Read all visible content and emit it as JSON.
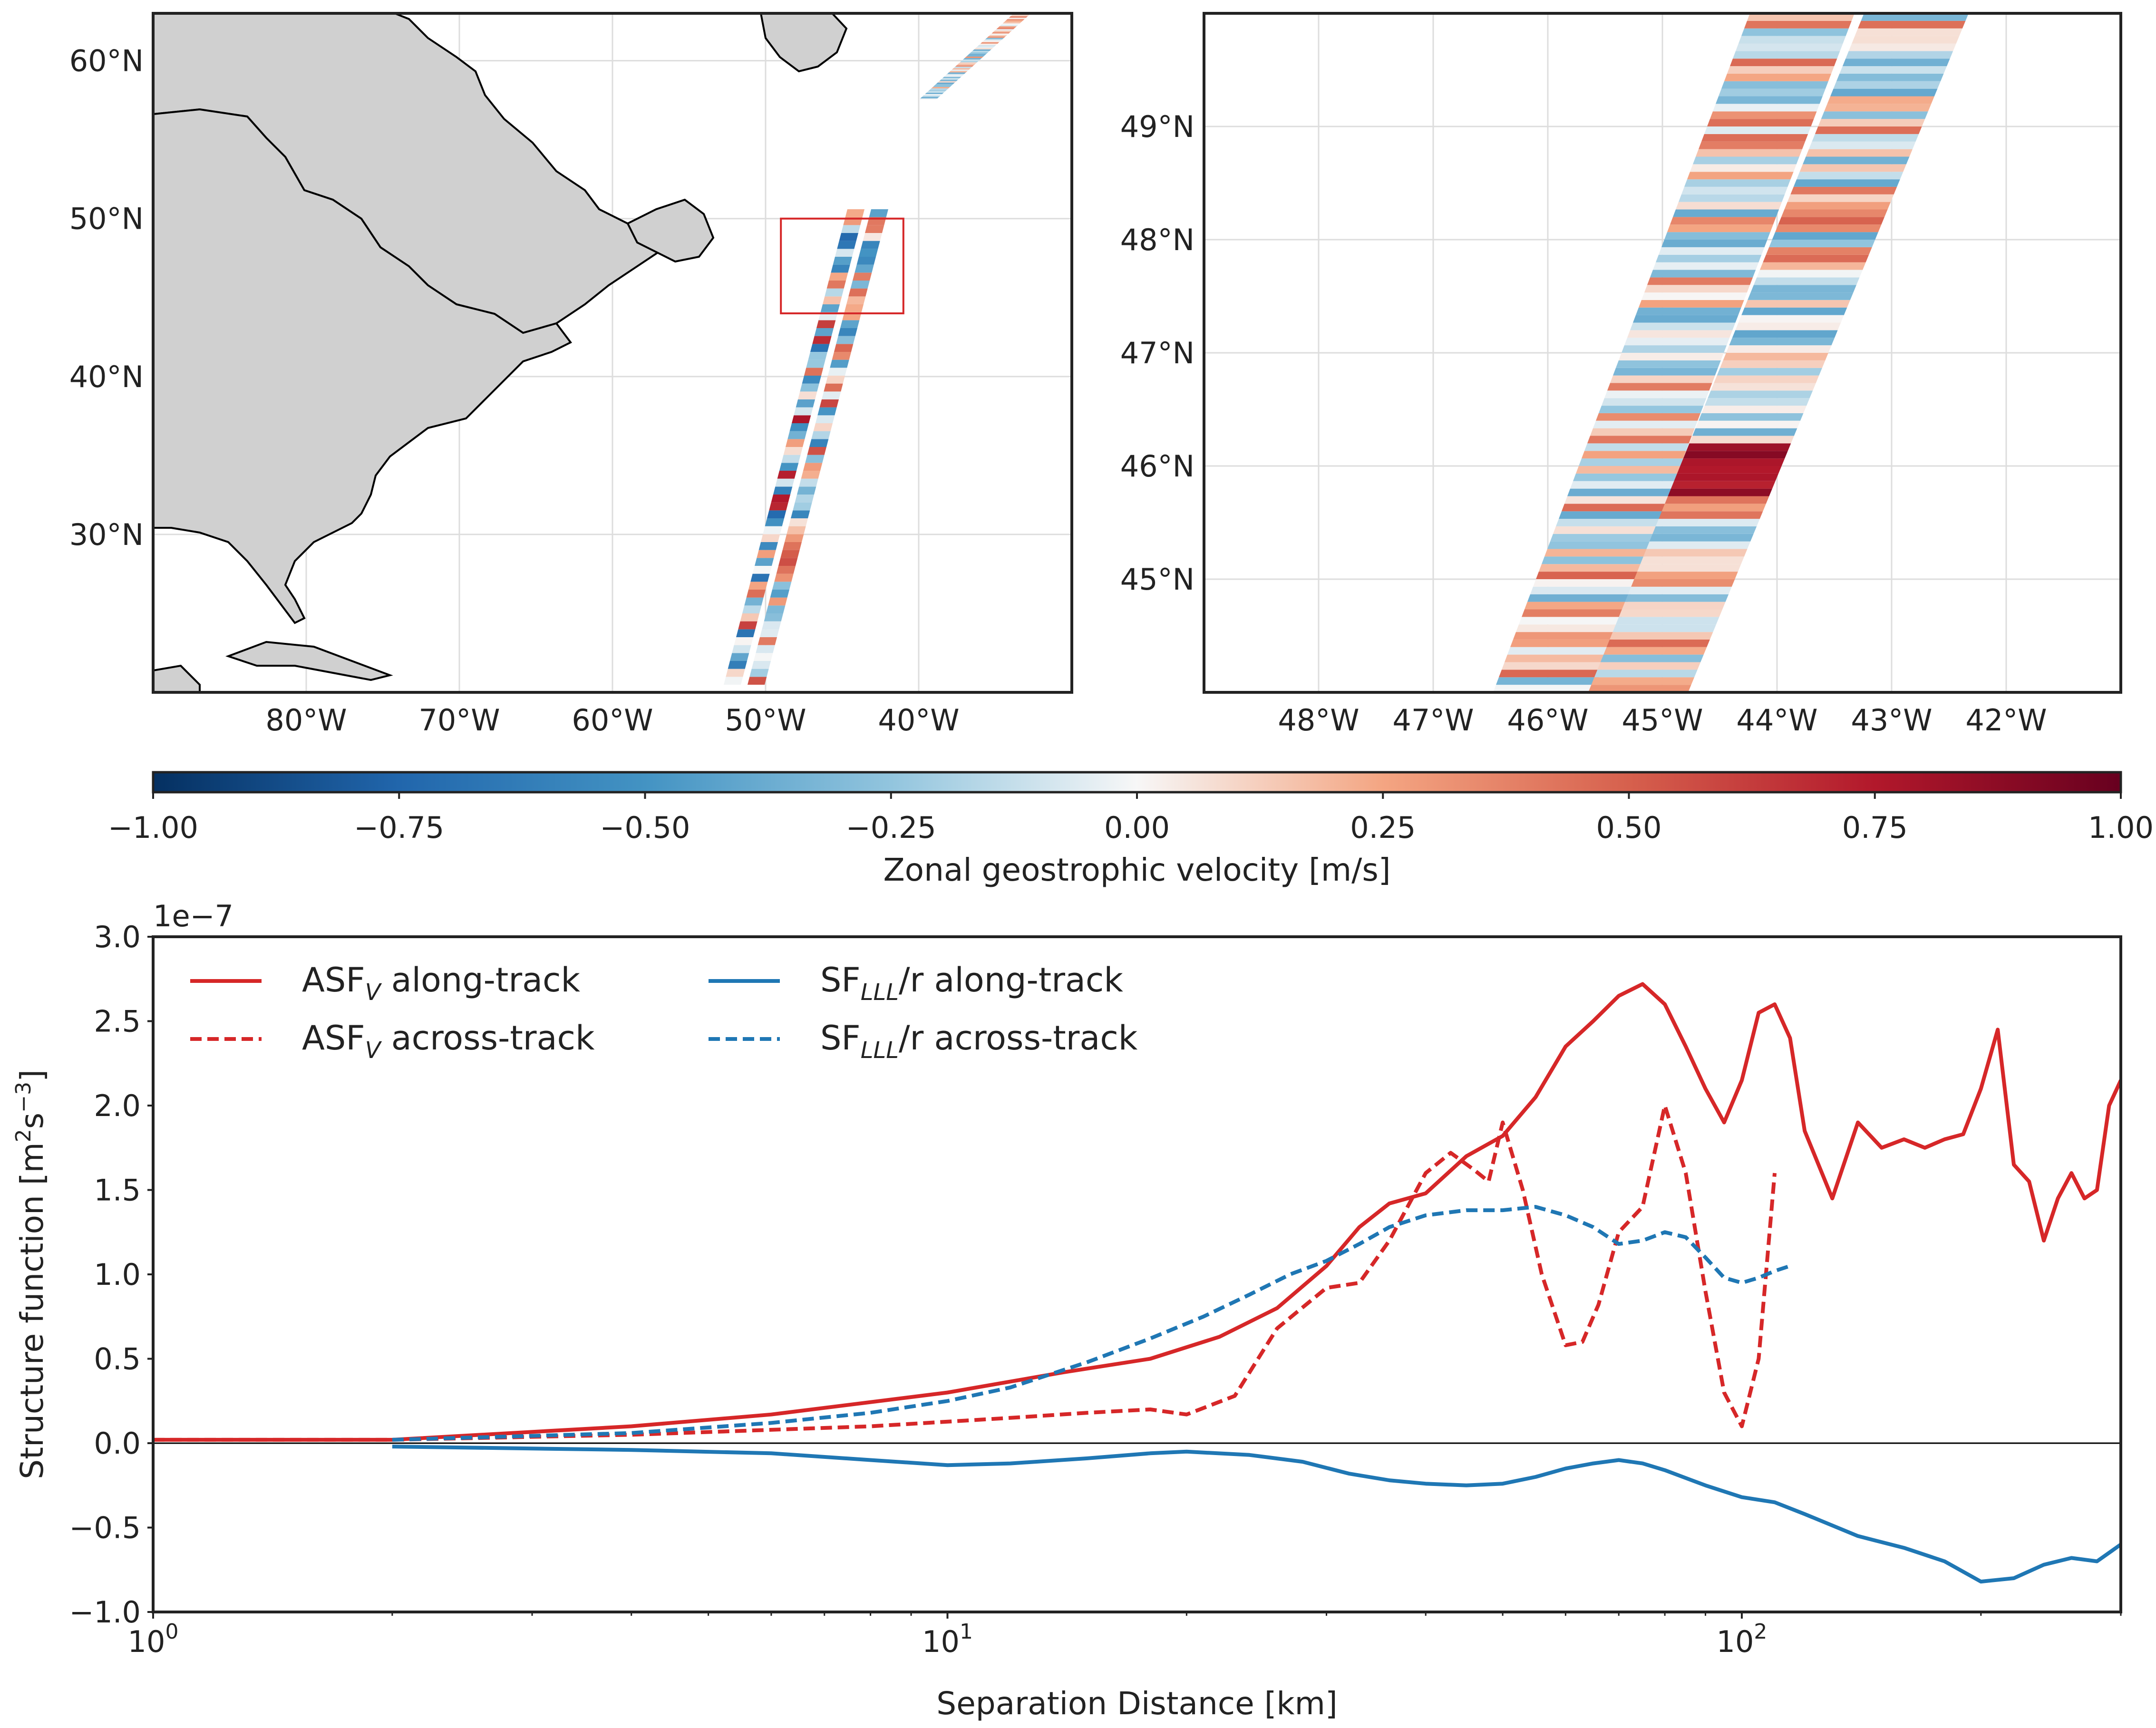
{
  "colors": {
    "red": "#d62728",
    "blue": "#1f77b4",
    "land": "#d0d0d0",
    "grid": "#dddddd",
    "box": "#d62728"
  },
  "chart_data": [
    {
      "type": "map",
      "panel": "overview-map",
      "lon_range": [
        -90,
        -30
      ],
      "lat_range": [
        20,
        63
      ],
      "lon_ticks": [
        "80°W",
        "70°W",
        "60°W",
        "50°W",
        "40°W"
      ],
      "lon_tick_values": [
        -80,
        -70,
        -60,
        -50,
        -40
      ],
      "lat_ticks": [
        "30°N",
        "40°N",
        "50°N",
        "60°N"
      ],
      "lat_tick_values": [
        30,
        40,
        50,
        60
      ],
      "zoom_box": {
        "lon": [
          -49,
          -41
        ],
        "lat": [
          44,
          50
        ]
      },
      "grid": true
    },
    {
      "type": "map",
      "panel": "zoom-map",
      "lon_range": [
        -49,
        -41
      ],
      "lat_range": [
        44,
        50
      ],
      "lon_ticks": [
        "48°W",
        "47°W",
        "46°W",
        "45°W",
        "44°W",
        "43°W",
        "42°W"
      ],
      "lon_tick_values": [
        -48,
        -47,
        -46,
        -45,
        -44,
        -43,
        -42
      ],
      "lat_ticks": [
        "45°N",
        "46°N",
        "47°N",
        "48°N",
        "49°N"
      ],
      "lat_tick_values": [
        45,
        46,
        47,
        48,
        49
      ],
      "grid": true
    },
    {
      "type": "colorbar",
      "range": [
        -1.0,
        1.0
      ],
      "ticks": [
        "−1.00",
        "−0.75",
        "−0.50",
        "−0.25",
        "0.00",
        "0.25",
        "0.50",
        "0.75",
        "1.00"
      ],
      "tick_values": [
        -1,
        -0.75,
        -0.5,
        -0.25,
        0,
        0.25,
        0.5,
        0.75,
        1
      ],
      "label": "Zonal geostrophic velocity [m/s]",
      "colormap": [
        "#053061",
        "#2166ac",
        "#4393c3",
        "#92c5de",
        "#f7f7f7",
        "#f4a582",
        "#d6604d",
        "#b2182b",
        "#67001f"
      ]
    },
    {
      "type": "line",
      "panel": "structure-functions",
      "xscale": "log",
      "xlim": [
        1,
        300
      ],
      "ylim": [
        -1.0,
        3.0
      ],
      "x_ticks": [
        {
          "base": "10",
          "exp": "0",
          "value": 1
        },
        {
          "base": "10",
          "exp": "1",
          "value": 10
        },
        {
          "base": "10",
          "exp": "2",
          "value": 100
        }
      ],
      "y_ticks": [
        "−1.0",
        "−0.5",
        "0.0",
        "0.5",
        "1.0",
        "1.5",
        "2.0",
        "2.5",
        "3.0"
      ],
      "y_tick_values": [
        -1.0,
        -0.5,
        0.0,
        0.5,
        1.0,
        1.5,
        2.0,
        2.5,
        3.0
      ],
      "offset_text": "1e−7",
      "xlabel": "Separation Distance [km]",
      "ylabel": "Structure function [m",
      "ylabel_sup1": "2",
      "ylabel_mid": "s",
      "ylabel_sup2": "−3",
      "ylabel_end": "]",
      "legend_position": "upper-left",
      "legend": [
        {
          "main": "ASF",
          "sub": "V",
          "rest": " along-track"
        },
        {
          "main": "ASF",
          "sub": "V",
          "rest": " across-track"
        },
        {
          "main": "SF",
          "sub": "LLL",
          "rest": "/r along-track"
        },
        {
          "main": "SF",
          "sub": "LLL",
          "rest": "/r across-track"
        }
      ],
      "series": [
        {
          "key": "asf-along",
          "color": "red",
          "dash": false,
          "x": [
            1,
            2,
            4,
            6,
            10,
            14,
            18,
            22,
            26,
            30,
            33,
            36,
            40,
            45,
            50,
            55,
            60,
            65,
            70,
            75,
            80,
            85,
            90,
            95,
            100,
            105,
            110,
            115,
            120,
            130,
            140,
            150,
            160,
            170,
            180,
            190,
            200,
            210,
            220,
            230,
            240,
            250,
            260,
            270,
            280,
            290,
            300
          ],
          "y": [
            0.02,
            0.02,
            0.1,
            0.17,
            0.3,
            0.42,
            0.5,
            0.63,
            0.8,
            1.05,
            1.28,
            1.42,
            1.48,
            1.7,
            1.82,
            2.05,
            2.35,
            2.5,
            2.65,
            2.72,
            2.6,
            2.35,
            2.1,
            1.9,
            2.15,
            2.55,
            2.6,
            2.4,
            1.85,
            1.45,
            1.9,
            1.75,
            1.8,
            1.75,
            1.8,
            1.83,
            2.1,
            2.45,
            1.65,
            1.55,
            1.2,
            1.45,
            1.6,
            1.45,
            1.5,
            2.0,
            2.15
          ]
        },
        {
          "key": "asf-across",
          "color": "red",
          "dash": true,
          "x": [
            1,
            2,
            4,
            8,
            12,
            15,
            18,
            20,
            23,
            26,
            30,
            33,
            36,
            40,
            43,
            46,
            48,
            50,
            53,
            56,
            60,
            63,
            66,
            70,
            75,
            80,
            85,
            90,
            95,
            100,
            105,
            110
          ],
          "y": [
            0.02,
            0.02,
            0.05,
            0.1,
            0.15,
            0.18,
            0.2,
            0.17,
            0.28,
            0.68,
            0.92,
            0.95,
            1.2,
            1.6,
            1.72,
            1.62,
            1.55,
            1.9,
            1.5,
            1.0,
            0.58,
            0.6,
            0.82,
            1.25,
            1.4,
            2.0,
            1.6,
            0.9,
            0.3,
            0.1,
            0.5,
            1.6
          ]
        },
        {
          "key": "sf-along",
          "color": "blue",
          "dash": false,
          "x": [
            2,
            4,
            6,
            8,
            10,
            12,
            15,
            18,
            20,
            24,
            28,
            32,
            36,
            40,
            45,
            50,
            55,
            60,
            65,
            70,
            75,
            80,
            90,
            100,
            110,
            120,
            140,
            160,
            180,
            200,
            220,
            240,
            260,
            280,
            300
          ],
          "y": [
            -0.02,
            -0.04,
            -0.06,
            -0.1,
            -0.13,
            -0.12,
            -0.09,
            -0.06,
            -0.05,
            -0.07,
            -0.11,
            -0.18,
            -0.22,
            -0.24,
            -0.25,
            -0.24,
            -0.2,
            -0.15,
            -0.12,
            -0.1,
            -0.12,
            -0.16,
            -0.25,
            -0.32,
            -0.35,
            -0.42,
            -0.55,
            -0.62,
            -0.7,
            -0.82,
            -0.8,
            -0.72,
            -0.68,
            -0.7,
            -0.6
          ]
        },
        {
          "key": "sf-across",
          "color": "blue",
          "dash": true,
          "x": [
            2,
            4,
            6,
            8,
            10,
            12,
            15,
            18,
            21,
            24,
            27,
            30,
            33,
            36,
            40,
            45,
            50,
            55,
            60,
            65,
            70,
            75,
            80,
            85,
            90,
            95,
            100,
            105,
            110,
            115
          ],
          "y": [
            0.02,
            0.06,
            0.12,
            0.18,
            0.25,
            0.33,
            0.48,
            0.62,
            0.75,
            0.88,
            1.0,
            1.08,
            1.18,
            1.28,
            1.35,
            1.38,
            1.38,
            1.4,
            1.35,
            1.28,
            1.18,
            1.2,
            1.25,
            1.22,
            1.1,
            0.98,
            0.95,
            0.98,
            1.02,
            1.05
          ]
        }
      ]
    }
  ]
}
